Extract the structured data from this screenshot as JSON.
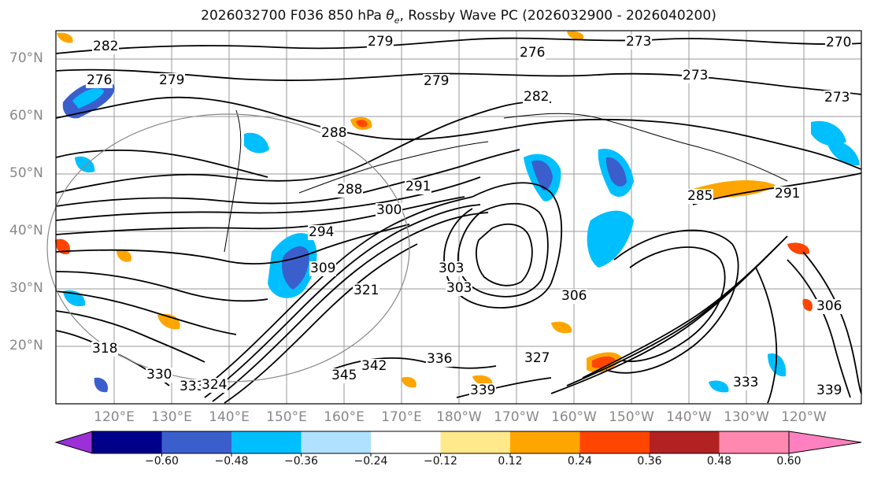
{
  "title": "2026032700 F036 850 hPa θe, Rossby Wave PC (2026032900 - 2026040200)",
  "title_parts": {
    "prefix": "2026032700 F036 850 hPa ",
    "theta": "θ",
    "sub": "e",
    "suffix": ", Rossby Wave PC (2026032900 - 2026040200)"
  },
  "lat_labels": [
    "70°N",
    "60°N",
    "50°N",
    "40°N",
    "30°N",
    "20°N"
  ],
  "lon_labels": [
    "120°E",
    "130°E",
    "140°E",
    "150°E",
    "160°E",
    "170°E",
    "180°W",
    "170°W",
    "160°W",
    "150°W",
    "140°W",
    "130°W",
    "120°W"
  ],
  "contour_labels": [
    "279",
    "273",
    "276",
    "273",
    "279",
    "276",
    "279",
    "282",
    "273",
    "288",
    "288",
    "291",
    "285",
    "300",
    "294",
    "309",
    "303",
    "303",
    "306",
    "321",
    "306",
    "339",
    "342",
    "345",
    "333",
    "336",
    "330",
    "327",
    "324",
    "339",
    "333",
    "291",
    "282",
    "318",
    "270"
  ],
  "colorbar": {
    "ticks": [
      "−0.60",
      "−0.48",
      "−0.36",
      "−0.24",
      "−0.12",
      "0.12",
      "0.24",
      "0.36",
      "0.48",
      "0.60"
    ],
    "colors": [
      "#9b30d9",
      "#00008b",
      "#3a5fcd",
      "#00bfff",
      "#b0e2ff",
      "#ffffff",
      "#ffe98a",
      "#ffa500",
      "#ff4500",
      "#b22222",
      "#ff88b0",
      "#ff80c0"
    ]
  },
  "colors": {
    "contour": "#000000",
    "grid": "#888888",
    "coast": "#000000",
    "label_gray": "#888888"
  },
  "icons": [
    "colorbar-left-arrow-icon",
    "colorbar-right-arrow-icon"
  ]
}
